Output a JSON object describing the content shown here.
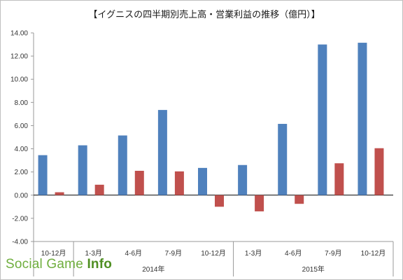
{
  "watermark": {
    "part1": "Social Game ",
    "part2": "Info"
  },
  "colors": {
    "sales": "#4f81bd",
    "operating_profit": "#c0504d",
    "axis": "#999999",
    "zero_line": "#000000"
  },
  "chart_data": {
    "type": "bar",
    "title": "【イグニスの四半期別売上高・営業利益の推移（億円）】",
    "categories": [
      "10-12月",
      "1-3月",
      "4-6月",
      "7-9月",
      "10-12月",
      "1-3月",
      "4-6月",
      "7-9月",
      "10-12月"
    ],
    "groups": [
      {
        "label": "",
        "categories": [
          0
        ]
      },
      {
        "label": "2014年",
        "categories": [
          1,
          2,
          3,
          4
        ]
      },
      {
        "label": "2015年",
        "categories": [
          5,
          6,
          7,
          8
        ]
      }
    ],
    "series": [
      {
        "key": "sales",
        "values": [
          3.45,
          4.3,
          5.15,
          7.35,
          2.35,
          2.6,
          6.15,
          13.0,
          13.15
        ]
      },
      {
        "key": "operating_profit",
        "values": [
          0.25,
          0.9,
          2.1,
          2.05,
          -1.0,
          -1.4,
          -0.75,
          2.75,
          4.05
        ]
      }
    ],
    "ylim": [
      -4,
      14
    ],
    "yticks": [
      "-4.00",
      "-2.00",
      "0.00",
      "2.00",
      "4.00",
      "6.00",
      "8.00",
      "10.00",
      "12.00",
      "14.00"
    ],
    "grid": false,
    "legend": "none"
  }
}
